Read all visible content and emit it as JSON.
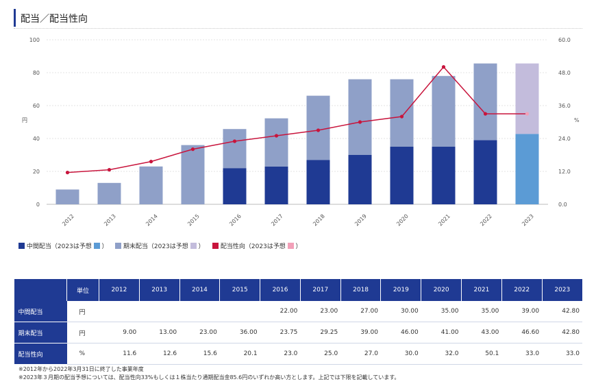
{
  "page": {
    "title": "配当／配当性向"
  },
  "colors": {
    "interim": "#1f3a93",
    "interim_forecast": "#5b9bd5",
    "yearend": "#8fa0c8",
    "yearend_forecast": "#c3bcdc",
    "payout": "#c8143c",
    "payout_forecast": "#f2a0b8",
    "header_bg": "#1f3a93"
  },
  "chart_data": {
    "type": "bar",
    "categories": [
      "2012",
      "2013",
      "2014",
      "2015",
      "2016",
      "2017",
      "2018",
      "2019",
      "2020",
      "2021",
      "2022",
      "2023"
    ],
    "series": [
      {
        "name": "中間配当",
        "values": [
          null,
          null,
          null,
          null,
          22.0,
          23.0,
          27.0,
          30.0,
          35.0,
          35.0,
          39.0,
          42.8
        ]
      },
      {
        "name": "期末配当",
        "values": [
          9.0,
          13.0,
          23.0,
          36.0,
          23.75,
          29.25,
          39.0,
          46.0,
          41.0,
          43.0,
          46.6,
          42.8
        ]
      },
      {
        "name": "配当性向",
        "values": [
          11.6,
          12.6,
          15.6,
          20.1,
          23.0,
          25.0,
          27.0,
          30.0,
          32.0,
          50.1,
          33.0,
          33.0
        ],
        "axis": "right",
        "kind": "line"
      }
    ],
    "forecast_category": "2023",
    "ylabel_left": "円",
    "ylabel_right": "%",
    "ylim_left": [
      0,
      100
    ],
    "ylim_right": [
      0,
      60
    ],
    "yticks_left": [
      "0",
      "20",
      "40",
      "60",
      "80",
      "100"
    ],
    "yticks_right": [
      "0.0",
      "12.0",
      "24.0",
      "36.0",
      "48.0",
      "60.0"
    ],
    "grid": true
  },
  "legend": [
    {
      "label": "中間配当（2023は予想",
      "suffix": "）"
    },
    {
      "label": "期末配当（2023は予想",
      "suffix": "）"
    },
    {
      "label": "配当性向（2023は予想",
      "suffix": "）"
    }
  ],
  "table": {
    "unit_header": "単位",
    "years": [
      "2012",
      "2013",
      "2014",
      "2015",
      "2016",
      "2017",
      "2018",
      "2019",
      "2020",
      "2021",
      "2022",
      "2023"
    ],
    "rows": [
      {
        "label": "中間配当",
        "unit": "円",
        "values": [
          "",
          "",
          "",
          "",
          "22.00",
          "23.00",
          "27.00",
          "30.00",
          "35.00",
          "35.00",
          "39.00",
          "42.80"
        ]
      },
      {
        "label": "期末配当",
        "unit": "円",
        "values": [
          "9.00",
          "13.00",
          "23.00",
          "36.00",
          "23.75",
          "29.25",
          "39.00",
          "46.00",
          "41.00",
          "43.00",
          "46.60",
          "42.80"
        ]
      },
      {
        "label": "配当性向",
        "unit": "%",
        "values": [
          "11.6",
          "12.6",
          "15.6",
          "20.1",
          "23.0",
          "25.0",
          "27.0",
          "30.0",
          "32.0",
          "50.1",
          "33.0",
          "33.0"
        ]
      }
    ]
  },
  "notes": [
    "※2012年から2022年3月31日に終了した事業年度",
    "※2023年３月期の配当予想については、配当性向33%もしくは１株当たり通期配当金85.6円のいずれか高い方とします。上記では下限を記載しています。"
  ]
}
